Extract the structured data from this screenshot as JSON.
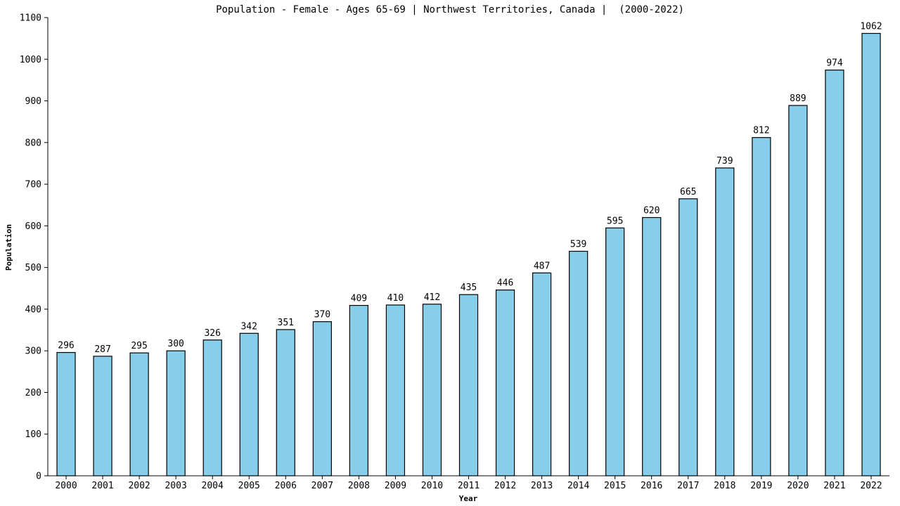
{
  "chart_data": {
    "type": "bar",
    "title": "Population - Female - Ages 65-69 | Northwest Territories, Canada |  (2000-2022)",
    "xlabel": "Year",
    "ylabel": "Population",
    "ylim": [
      0,
      1100
    ],
    "yticks": [
      0,
      100,
      200,
      300,
      400,
      500,
      600,
      700,
      800,
      900,
      1000,
      1100
    ],
    "grid": false,
    "bar_color": "#87ceeb",
    "categories": [
      "2000",
      "2001",
      "2002",
      "2003",
      "2004",
      "2005",
      "2006",
      "2007",
      "2008",
      "2009",
      "2010",
      "2011",
      "2012",
      "2013",
      "2014",
      "2015",
      "2016",
      "2017",
      "2018",
      "2019",
      "2020",
      "2021",
      "2022"
    ],
    "values": [
      296,
      287,
      295,
      300,
      326,
      342,
      351,
      370,
      409,
      410,
      412,
      435,
      446,
      487,
      539,
      595,
      620,
      665,
      739,
      812,
      889,
      974,
      1062
    ]
  }
}
